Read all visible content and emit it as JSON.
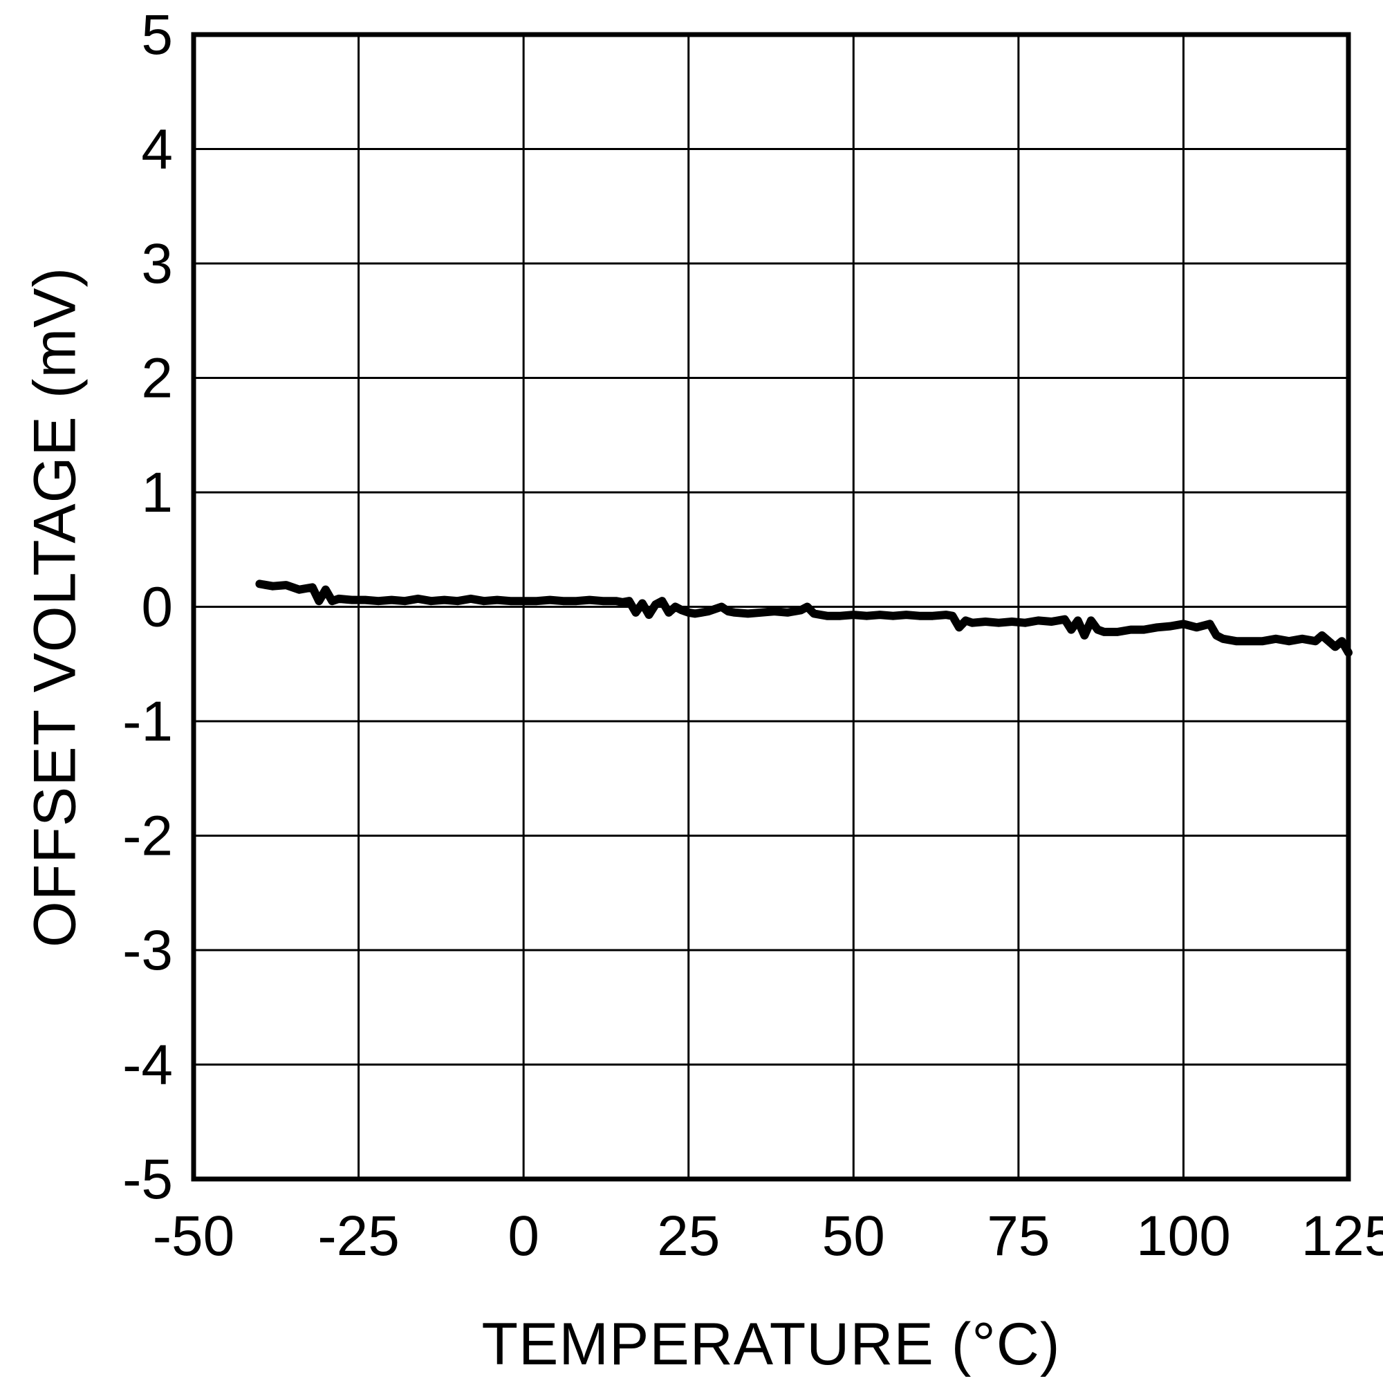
{
  "chart_data": {
    "type": "line",
    "title": "",
    "xlabel": "TEMPERATURE (°C)",
    "ylabel": "OFFSET VOLTAGE (mV)",
    "xlim": [
      -50,
      125
    ],
    "ylim": [
      -5,
      5
    ],
    "xticks": [
      -50,
      -25,
      0,
      25,
      50,
      75,
      100,
      125
    ],
    "yticks": [
      5,
      4,
      3,
      2,
      1,
      0,
      -1,
      -2,
      -3,
      -4,
      -5
    ],
    "grid": true,
    "legend": "none",
    "line_color": "#000000",
    "grid_color": "#000000",
    "series": [
      {
        "name": "offset-voltage",
        "x": [
          -40,
          -38,
          -36,
          -34,
          -32,
          -31,
          -30,
          -29,
          -28,
          -26,
          -24,
          -22,
          -20,
          -18,
          -16,
          -14,
          -12,
          -10,
          -8,
          -6,
          -4,
          -2,
          0,
          2,
          4,
          6,
          8,
          10,
          12,
          14,
          15,
          16,
          17,
          18,
          19,
          20,
          21,
          22,
          23,
          24,
          25,
          26,
          28,
          30,
          31,
          32,
          34,
          36,
          38,
          40,
          42,
          43,
          44,
          46,
          48,
          50,
          52,
          54,
          56,
          58,
          60,
          62,
          64,
          65,
          66,
          67,
          68,
          70,
          72,
          74,
          76,
          78,
          80,
          82,
          83,
          84,
          85,
          86,
          87,
          88,
          90,
          92,
          94,
          96,
          98,
          100,
          102,
          104,
          105,
          106,
          108,
          110,
          112,
          114,
          116,
          118,
          120,
          121,
          122,
          123,
          124,
          125
        ],
        "y": [
          0.2,
          0.18,
          0.19,
          0.15,
          0.17,
          0.05,
          0.15,
          0.05,
          0.07,
          0.06,
          0.06,
          0.05,
          0.06,
          0.05,
          0.07,
          0.05,
          0.06,
          0.05,
          0.07,
          0.05,
          0.06,
          0.05,
          0.05,
          0.05,
          0.06,
          0.05,
          0.05,
          0.06,
          0.05,
          0.05,
          0.04,
          0.05,
          -0.05,
          0.03,
          -0.07,
          0.02,
          0.05,
          -0.05,
          0.0,
          -0.03,
          -0.05,
          -0.06,
          -0.04,
          0.0,
          -0.04,
          -0.05,
          -0.06,
          -0.05,
          -0.04,
          -0.05,
          -0.03,
          0.0,
          -0.06,
          -0.08,
          -0.08,
          -0.07,
          -0.08,
          -0.07,
          -0.08,
          -0.07,
          -0.08,
          -0.08,
          -0.07,
          -0.08,
          -0.18,
          -0.12,
          -0.14,
          -0.13,
          -0.14,
          -0.13,
          -0.14,
          -0.12,
          -0.13,
          -0.11,
          -0.2,
          -0.12,
          -0.25,
          -0.12,
          -0.2,
          -0.22,
          -0.22,
          -0.2,
          -0.2,
          -0.18,
          -0.17,
          -0.15,
          -0.18,
          -0.15,
          -0.25,
          -0.28,
          -0.3,
          -0.3,
          -0.3,
          -0.28,
          -0.3,
          -0.28,
          -0.3,
          -0.25,
          -0.3,
          -0.35,
          -0.3,
          -0.4
        ]
      }
    ]
  }
}
